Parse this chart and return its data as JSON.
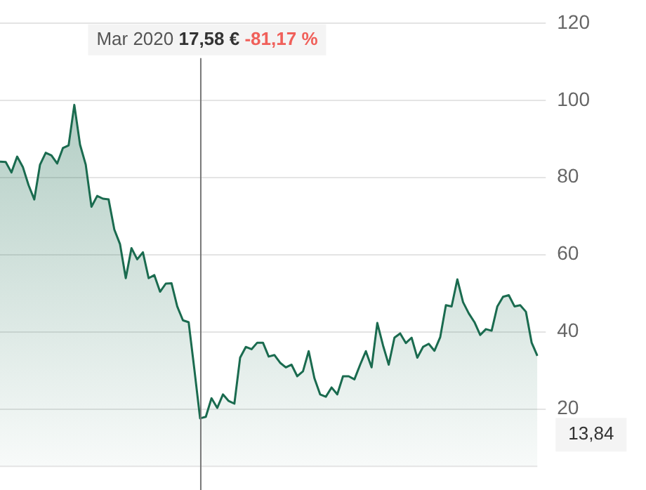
{
  "chart_data": {
    "type": "area",
    "categories": [
      null,
      null,
      null,
      null,
      null,
      null,
      null,
      null,
      null,
      null,
      null,
      null,
      null,
      null,
      null,
      null,
      null,
      null,
      null,
      null,
      null,
      null,
      null,
      null,
      null,
      null,
      null,
      null,
      null,
      null,
      null,
      null,
      null,
      null,
      null,
      null,
      null,
      null,
      null,
      null,
      null,
      null,
      null,
      null,
      null,
      null,
      null,
      null,
      null,
      null,
      null,
      null,
      null,
      null,
      null,
      null,
      null,
      null,
      null,
      null,
      null,
      null,
      null,
      null,
      null,
      null,
      null,
      null,
      null,
      null,
      null,
      null,
      null,
      null,
      null,
      null,
      null,
      null,
      null,
      null,
      null,
      null,
      null,
      null,
      null,
      null,
      null,
      null,
      null,
      null,
      null,
      null,
      null,
      null,
      null
    ],
    "series": [
      {
        "color": "#1a6b4f",
        "values": [
          84.1,
          84,
          81.3,
          85.4,
          82.7,
          78,
          74.3,
          83.3,
          86.4,
          85.7,
          83.6,
          87.6,
          88.3,
          98.8,
          88.5,
          83.3,
          72.4,
          75.2,
          74.5,
          74.3,
          66.5,
          62.7,
          53.9,
          61.7,
          58.8,
          60.6,
          53.9,
          54.7,
          50.4,
          52.5,
          52.6,
          46.6,
          43,
          42.5,
          30.3,
          17.6,
          18,
          22.8,
          20.3,
          23.8,
          22.1,
          21.4,
          33.3,
          36.1,
          35.5,
          37.2,
          37.2,
          33.6,
          34,
          32,
          30.8,
          31.5,
          28.5,
          29.8,
          35,
          28,
          23.8,
          23.2,
          25.6,
          23.8,
          28.5,
          28.5,
          27.7,
          31.5,
          35,
          30.8,
          42.3,
          36.5,
          31.5,
          38.5,
          39.6,
          37.1,
          38.5,
          33.3,
          36.1,
          36.9,
          35.1,
          38.6,
          46.9,
          46.6,
          53.6,
          47.7,
          44.8,
          42.5,
          39.2,
          40.7,
          40.3,
          46.6,
          49.1,
          49.5,
          46.6,
          46.9,
          45.2,
          37.2,
          33.8
        ]
      }
    ],
    "ylim": [
      5,
      120
    ],
    "yticks": [
      20,
      40,
      60,
      80,
      100,
      120
    ],
    "grid": "y",
    "legend": false,
    "annotations": [
      "Mar 2020 17,58 € -81,17 %",
      "13,84"
    ]
  }
}
